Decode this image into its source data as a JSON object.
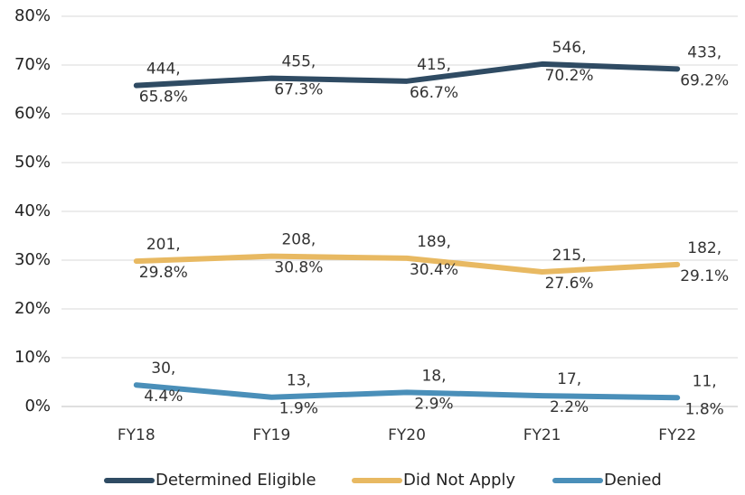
{
  "chart_data": {
    "type": "line",
    "categories": [
      "FY18",
      "FY19",
      "FY20",
      "FY21",
      "FY22"
    ],
    "series": [
      {
        "name": "Determined Eligible",
        "color": "#2f4b63",
        "values": [
          65.8,
          67.3,
          66.7,
          70.2,
          69.2
        ],
        "value_labels": [
          "65.8%",
          "67.3%",
          "66.7%",
          "70.2%",
          "69.2%"
        ],
        "counts": [
          444,
          455,
          415,
          546,
          433
        ]
      },
      {
        "name": "Did Not Apply",
        "color": "#e8b962",
        "values": [
          29.8,
          30.8,
          30.4,
          27.6,
          29.1
        ],
        "value_labels": [
          "29.8%",
          "30.8%",
          "30.4%",
          "27.6%",
          "29.1%"
        ],
        "counts": [
          201,
          208,
          189,
          215,
          182
        ]
      },
      {
        "name": "Denied",
        "color": "#4a8fb9",
        "values": [
          4.4,
          1.9,
          2.9,
          2.2,
          1.8
        ],
        "value_labels": [
          "4.4%",
          "1.9%",
          "2.9%",
          "2.2%",
          "1.8%"
        ],
        "counts": [
          30,
          13,
          18,
          17,
          11
        ]
      }
    ],
    "ylim": [
      0,
      80
    ],
    "yticks": [
      {
        "value": 0,
        "label": "0%"
      },
      {
        "value": 10,
        "label": "10%"
      },
      {
        "value": 20,
        "label": "20%"
      },
      {
        "value": 30,
        "label": "30%"
      },
      {
        "value": 40,
        "label": "40%"
      },
      {
        "value": 50,
        "label": "50%"
      },
      {
        "value": 60,
        "label": "60%"
      },
      {
        "value": 70,
        "label": "70%"
      },
      {
        "value": 80,
        "label": "80%"
      }
    ],
    "grid": true,
    "legend": "bottom"
  }
}
